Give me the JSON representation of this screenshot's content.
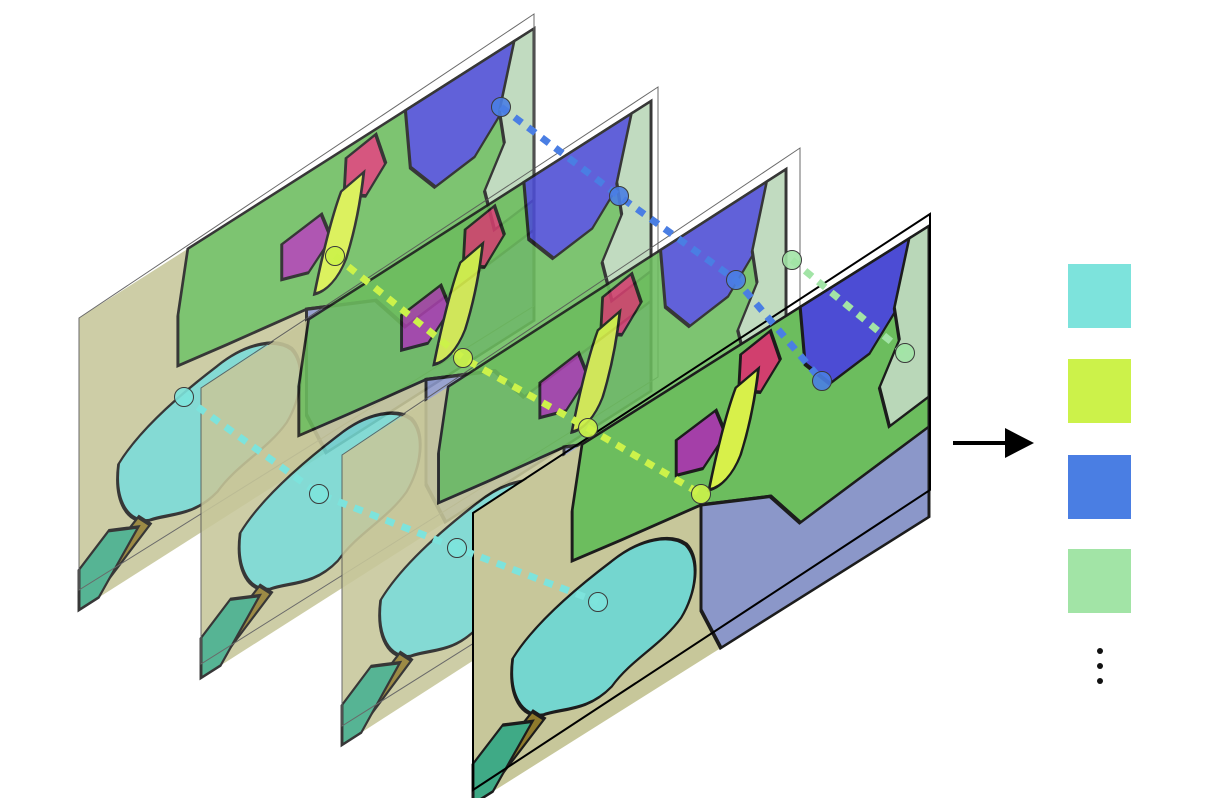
{
  "figure": {
    "frames": [
      {
        "id": "frame-1"
      },
      {
        "id": "frame-2"
      },
      {
        "id": "frame-3"
      },
      {
        "id": "frame-4"
      }
    ],
    "tracks": [
      {
        "id": "cyan-track",
        "color": "#7de3dc"
      },
      {
        "id": "yellow-track",
        "color": "#ccf24a"
      },
      {
        "id": "blue-track",
        "color": "#4a7ee3"
      },
      {
        "id": "green-track",
        "color": "#a2e4a6"
      }
    ],
    "legend": {
      "swatches": [
        "#7de3dc",
        "#ccf24a",
        "#4a7ee3",
        "#a2e4a6"
      ],
      "more_indicator": "⋮"
    },
    "arrow_color": "#000000"
  }
}
